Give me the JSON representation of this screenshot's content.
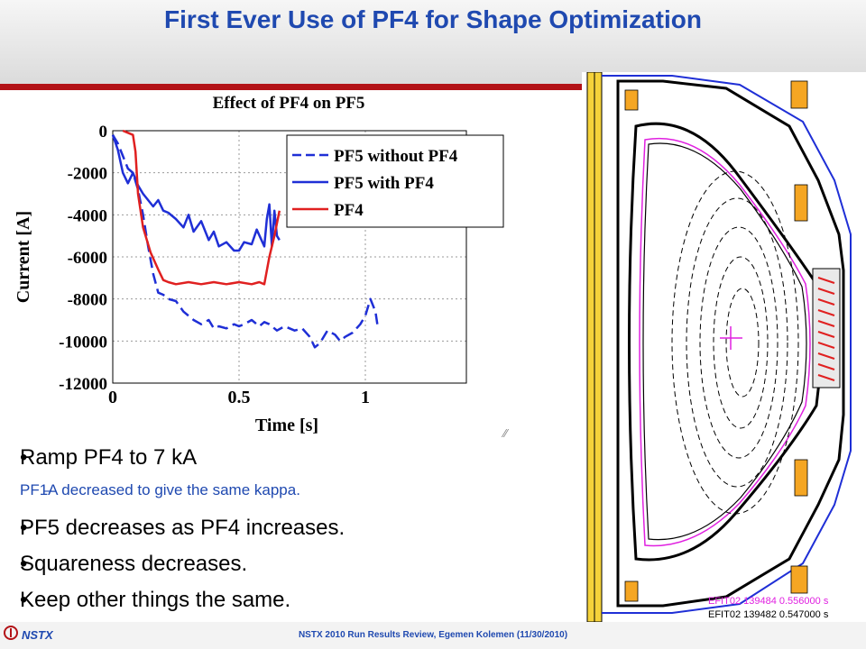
{
  "slide": {
    "title": "First Ever Use of PF4 for Shape Optimization"
  },
  "chart_data": {
    "type": "line",
    "title": "Effect of PF4 on PF5",
    "xlabel": "Time [s]",
    "ylabel": "Current [A]",
    "xlim": [
      0,
      1.4
    ],
    "ylim": [
      -12000,
      0
    ],
    "xticks": [
      "0",
      "0.5",
      "1"
    ],
    "yticks": [
      "0",
      "-2000",
      "-4000",
      "-6000",
      "-8000",
      "-10000",
      "-12000"
    ],
    "grid": true,
    "legend_position": "top-right",
    "series": [
      {
        "name": "PF5 without PF4",
        "color": "#1f2fd6",
        "style": "dashed",
        "x": [
          0,
          0.02,
          0.04,
          0.06,
          0.08,
          0.1,
          0.12,
          0.14,
          0.16,
          0.18,
          0.2,
          0.22,
          0.25,
          0.28,
          0.3,
          0.32,
          0.35,
          0.38,
          0.4,
          0.42,
          0.45,
          0.48,
          0.5,
          0.52,
          0.55,
          0.58,
          0.6,
          0.62,
          0.65,
          0.68,
          0.7,
          0.72,
          0.75,
          0.78,
          0.8,
          0.82,
          0.85,
          0.88,
          0.9,
          0.92,
          0.95,
          0.98,
          1.0,
          1.02,
          1.04,
          1.05
        ],
        "y": [
          -200,
          -600,
          -1200,
          -1800,
          -2000,
          -2800,
          -4000,
          -5500,
          -6800,
          -7700,
          -7800,
          -8000,
          -8100,
          -8600,
          -8800,
          -9000,
          -9200,
          -9000,
          -9400,
          -9300,
          -9400,
          -9200,
          -9300,
          -9200,
          -9000,
          -9300,
          -9100,
          -9200,
          -9500,
          -9300,
          -9400,
          -9500,
          -9400,
          -9800,
          -10300,
          -10100,
          -9500,
          -9700,
          -10000,
          -9800,
          -9600,
          -9200,
          -8800,
          -8000,
          -8600,
          -9400
        ]
      },
      {
        "name": "PF5 with PF4",
        "color": "#1f2fd6",
        "style": "solid",
        "x": [
          0,
          0.02,
          0.04,
          0.06,
          0.08,
          0.1,
          0.12,
          0.14,
          0.16,
          0.18,
          0.2,
          0.22,
          0.25,
          0.28,
          0.3,
          0.32,
          0.35,
          0.38,
          0.4,
          0.42,
          0.45,
          0.48,
          0.5,
          0.52,
          0.55,
          0.57,
          0.6,
          0.61,
          0.62,
          0.63,
          0.64,
          0.65,
          0.66
        ],
        "y": [
          -200,
          -900,
          -2000,
          -2500,
          -2000,
          -2600,
          -3000,
          -3300,
          -3600,
          -3300,
          -3800,
          -3900,
          -4200,
          -4600,
          -4000,
          -4800,
          -4300,
          -5200,
          -4800,
          -5500,
          -5300,
          -5700,
          -5700,
          -5300,
          -5400,
          -4700,
          -5500,
          -4200,
          -3500,
          -5500,
          -3800,
          -5000,
          -5200
        ]
      },
      {
        "name": "PF4",
        "color": "#e02020",
        "style": "solid",
        "x": [
          0.04,
          0.06,
          0.08,
          0.09,
          0.1,
          0.12,
          0.15,
          0.18,
          0.2,
          0.22,
          0.25,
          0.3,
          0.35,
          0.4,
          0.45,
          0.5,
          0.55,
          0.58,
          0.6,
          0.62,
          0.64,
          0.66
        ],
        "y": [
          0,
          -100,
          -200,
          -1000,
          -3000,
          -4600,
          -5800,
          -6600,
          -7100,
          -7200,
          -7300,
          -7200,
          -7300,
          -7200,
          -7300,
          -7200,
          -7300,
          -7200,
          -7300,
          -6000,
          -5000,
          -3800
        ]
      }
    ]
  },
  "bullets": [
    {
      "level": 1,
      "text": "Ramp PF4 to 7 kA"
    },
    {
      "level": 2,
      "marker": "–",
      "text": "PF1A decreased to give the same kappa."
    },
    {
      "level": 1,
      "text": "PF5 decreases as PF4 increases."
    },
    {
      "level": 1,
      "text": "Squareness decreases."
    },
    {
      "level": 1,
      "text": "Keep other things the same."
    }
  ],
  "equilibrium": {
    "legend": [
      {
        "text": "EFIT02  139484  0.556000  s",
        "color": "#e020e0"
      },
      {
        "text": "EFIT02  139482  0.547000  s",
        "color": "#000000"
      }
    ]
  },
  "footer": {
    "brand": "NSTX",
    "text": "NSTX 2010 Run Results Review,  Egemen Kolemen (11/30/2010)"
  },
  "colors": {
    "title": "#1f49b0",
    "accent_red": "#b31217",
    "sub_bullet": "#1f49b0"
  }
}
